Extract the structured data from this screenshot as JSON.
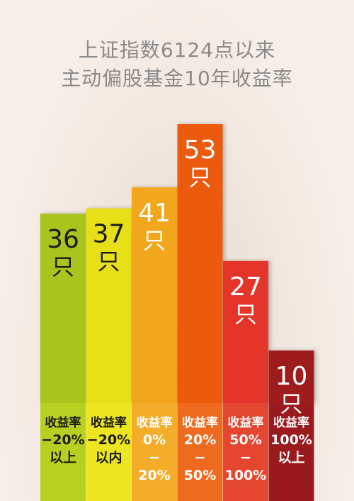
{
  "title_lines": [
    "上证指数6124点以来",
    "主动偏股基金10年收益率"
  ],
  "chart_data": {
    "type": "bar",
    "title": "上证指数6124点以来 主动偏股基金10年收益率",
    "unit": "只",
    "categories": [
      [
        "收益率",
        "−20%",
        "以上"
      ],
      [
        "收益率",
        "−20%",
        "以内"
      ],
      [
        "收益率",
        "0%",
        "−",
        "20%"
      ],
      [
        "收益率",
        "20%",
        "−",
        "50%"
      ],
      [
        "收益率",
        "50%",
        "−",
        "100%"
      ],
      [
        "收益率",
        "100%",
        "以上"
      ]
    ],
    "values": [
      36,
      37,
      41,
      53,
      27,
      10
    ],
    "ylim": [
      0,
      53
    ],
    "grid": false,
    "legend": "none",
    "colors": [
      "#a9c41a",
      "#e8e017",
      "#f2a61e",
      "#ec5a0f",
      "#e5362a",
      "#9e1b1e"
    ],
    "label_bg_colors": [
      "#b7cf21",
      "#ede520",
      "#f3ad2a",
      "#ee6a1e",
      "#e44630",
      "#9a1a1e"
    ],
    "label_text_colors": [
      "#1a1a1a",
      "#1a1a1a",
      "#ffffff",
      "#ffffff",
      "#ffffff",
      "#ffffff"
    ],
    "value_text_colors": [
      "#1a1a1a",
      "#1a1a1a",
      "#ffffff",
      "#ffffff",
      "#ffffff",
      "#ffffff"
    ]
  }
}
